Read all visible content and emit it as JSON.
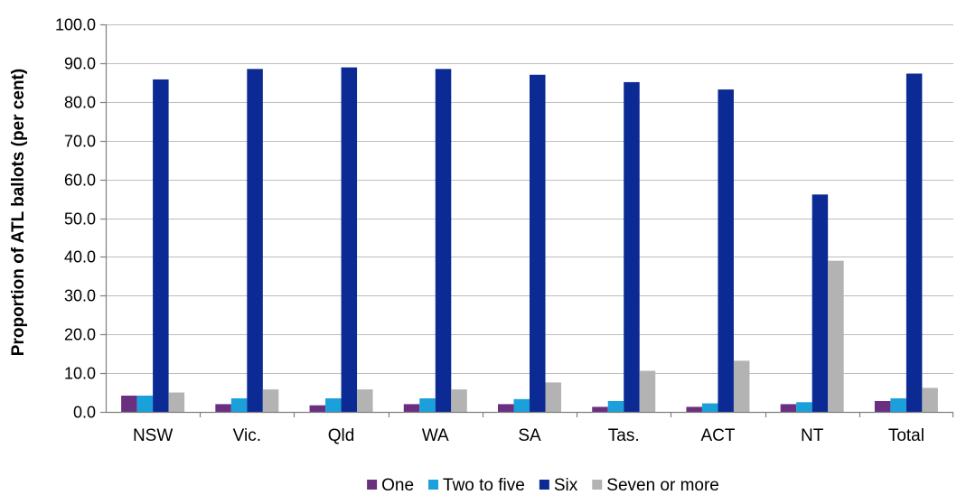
{
  "chart_data": {
    "type": "bar",
    "title": "",
    "xlabel": "",
    "ylabel": "Proportion of ATL ballots (per cent)",
    "ylim": [
      0,
      100
    ],
    "ytick_step": 10,
    "ytick_decimals": 1,
    "grid": true,
    "legend_position": "bottom",
    "categories": [
      "NSW",
      "Vic.",
      "Qld",
      "WA",
      "SA",
      "Tas.",
      "ACT",
      "NT",
      "Total"
    ],
    "series": [
      {
        "name": "One",
        "color": "#6b2f7f",
        "values": [
          4.2,
          2.0,
          1.7,
          2.0,
          2.0,
          1.3,
          1.3,
          2.0,
          2.8
        ]
      },
      {
        "name": "Two to five",
        "color": "#1aa0db",
        "values": [
          4.2,
          3.5,
          3.5,
          3.5,
          3.3,
          2.8,
          2.2,
          2.5,
          3.5
        ]
      },
      {
        "name": "Six",
        "color": "#0b2a93",
        "values": [
          85.8,
          88.5,
          88.9,
          88.5,
          87.0,
          85.1,
          83.2,
          56.1,
          87.3
        ]
      },
      {
        "name": "Seven or more",
        "color": "#b3b3b3",
        "values": [
          5.0,
          5.8,
          5.8,
          5.8,
          7.6,
          10.6,
          13.2,
          39.0,
          6.2
        ]
      }
    ]
  }
}
